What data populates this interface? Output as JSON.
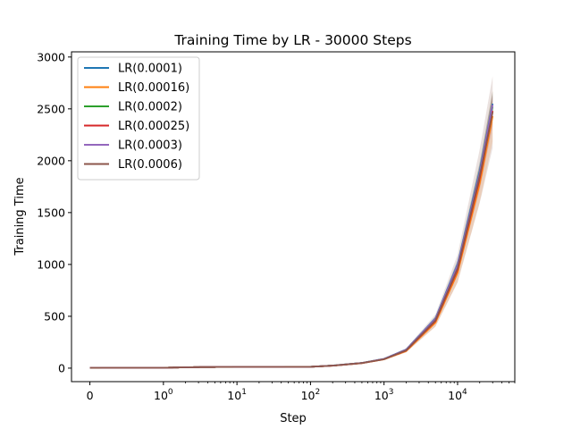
{
  "chart_data": {
    "type": "line",
    "title": "Training Time by LR - 30000 Steps",
    "xlabel": "Step",
    "ylabel": "Training Time",
    "x_scale": "symlog",
    "xlim": [
      -0.25,
      60000
    ],
    "ylim": [
      -130,
      3050
    ],
    "x_ticks": [
      0,
      1,
      10,
      100,
      1000,
      10000
    ],
    "x_tick_labels": [
      "0",
      "10^0",
      "10^1",
      "10^2",
      "10^3",
      "10^4"
    ],
    "y_ticks": [
      0,
      500,
      1000,
      1500,
      2000,
      2500,
      3000
    ],
    "y_tick_labels": [
      "0",
      "500",
      "1000",
      "1500",
      "2000",
      "2500",
      "3000"
    ],
    "grid": false,
    "legend_position": "top-left",
    "x": [
      0,
      1,
      3,
      10,
      100,
      200,
      500,
      1000,
      2000,
      5000,
      10000,
      20000,
      30000
    ],
    "series": [
      {
        "name": "LR(0.0001)",
        "color": "#1f77b4",
        "values": [
          3,
          4,
          10,
          12,
          13,
          25,
          50,
          90,
          180,
          480,
          1000,
          1900,
          2550
        ],
        "band": 0.04
      },
      {
        "name": "LR(0.00016)",
        "color": "#ff7f0e",
        "values": [
          3,
          4,
          10,
          12,
          13,
          24,
          48,
          85,
          165,
          440,
          920,
          1780,
          2430
        ],
        "band": 0.1
      },
      {
        "name": "LR(0.0002)",
        "color": "#2ca02c",
        "values": [
          3,
          4,
          10,
          12,
          13,
          25,
          50,
          88,
          175,
          470,
          980,
          1870,
          2520
        ],
        "band": 0.06
      },
      {
        "name": "LR(0.00025)",
        "color": "#d62728",
        "values": [
          3,
          4,
          10,
          12,
          13,
          24,
          49,
          87,
          170,
          455,
          950,
          1830,
          2480
        ],
        "band": 0.06
      },
      {
        "name": "LR(0.0003)",
        "color": "#9467bd",
        "values": [
          3,
          4,
          10,
          12,
          13,
          25,
          50,
          89,
          178,
          475,
          990,
          1880,
          2540
        ],
        "band": 0.05
      },
      {
        "name": "LR(0.0006)",
        "color": "#8c564b",
        "values": [
          3,
          4,
          10,
          12,
          13,
          24,
          49,
          86,
          172,
          460,
          960,
          1850,
          2470
        ],
        "band": 0.14
      }
    ]
  }
}
